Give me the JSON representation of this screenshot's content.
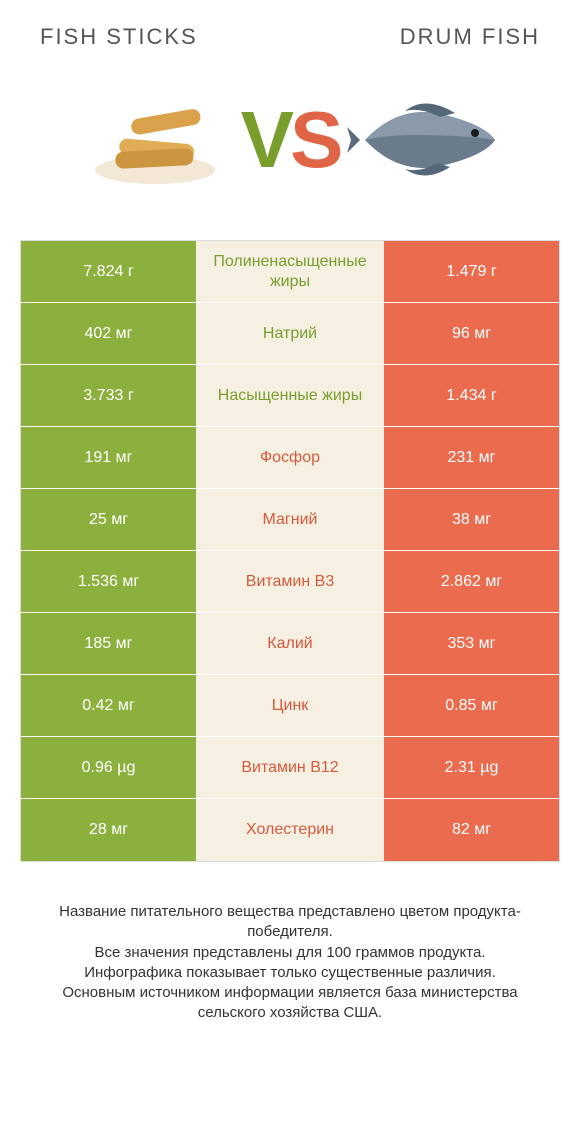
{
  "colors": {
    "left": "#8bb03e",
    "right": "#eb6b4f",
    "mid_bg": "#f6f0e2",
    "mid_text_left": "#7a9e2e",
    "mid_text_right": "#d55a3d",
    "title": "#555555",
    "footer": "#333333",
    "border": "#dddddd"
  },
  "header": {
    "left": "FISH STICKS",
    "right": "DRUM FISH"
  },
  "vs": {
    "v": "V",
    "s": "S"
  },
  "table": {
    "rows": [
      {
        "left": "7.824 г",
        "mid": "Полиненасыщенные жиры",
        "right": "1.479 г",
        "winner": "left"
      },
      {
        "left": "402 мг",
        "mid": "Натрий",
        "right": "96 мг",
        "winner": "left"
      },
      {
        "left": "3.733 г",
        "mid": "Насыщенные жиры",
        "right": "1.434 г",
        "winner": "left"
      },
      {
        "left": "191 мг",
        "mid": "Фосфор",
        "right": "231 мг",
        "winner": "right"
      },
      {
        "left": "25 мг",
        "mid": "Магний",
        "right": "38 мг",
        "winner": "right"
      },
      {
        "left": "1.536 мг",
        "mid": "Витамин B3",
        "right": "2.862 мг",
        "winner": "right"
      },
      {
        "left": "185 мг",
        "mid": "Калий",
        "right": "353 мг",
        "winner": "right"
      },
      {
        "left": "0.42 мг",
        "mid": "Цинк",
        "right": "0.85 мг",
        "winner": "right"
      },
      {
        "left": "0.96 µg",
        "mid": "Витамин B12",
        "right": "2.31 µg",
        "winner": "right"
      },
      {
        "left": "28 мг",
        "mid": "Холестерин",
        "right": "82 мг",
        "winner": "right"
      }
    ]
  },
  "footer": {
    "lines": [
      "Название питательного вещества представлено цветом продукта-победителя.",
      "Все значения представлены для 100 граммов продукта.",
      "Инфографика показывает только существенные различия.",
      "Основным источником информации является база министерства сельского хозяйства США."
    ]
  }
}
